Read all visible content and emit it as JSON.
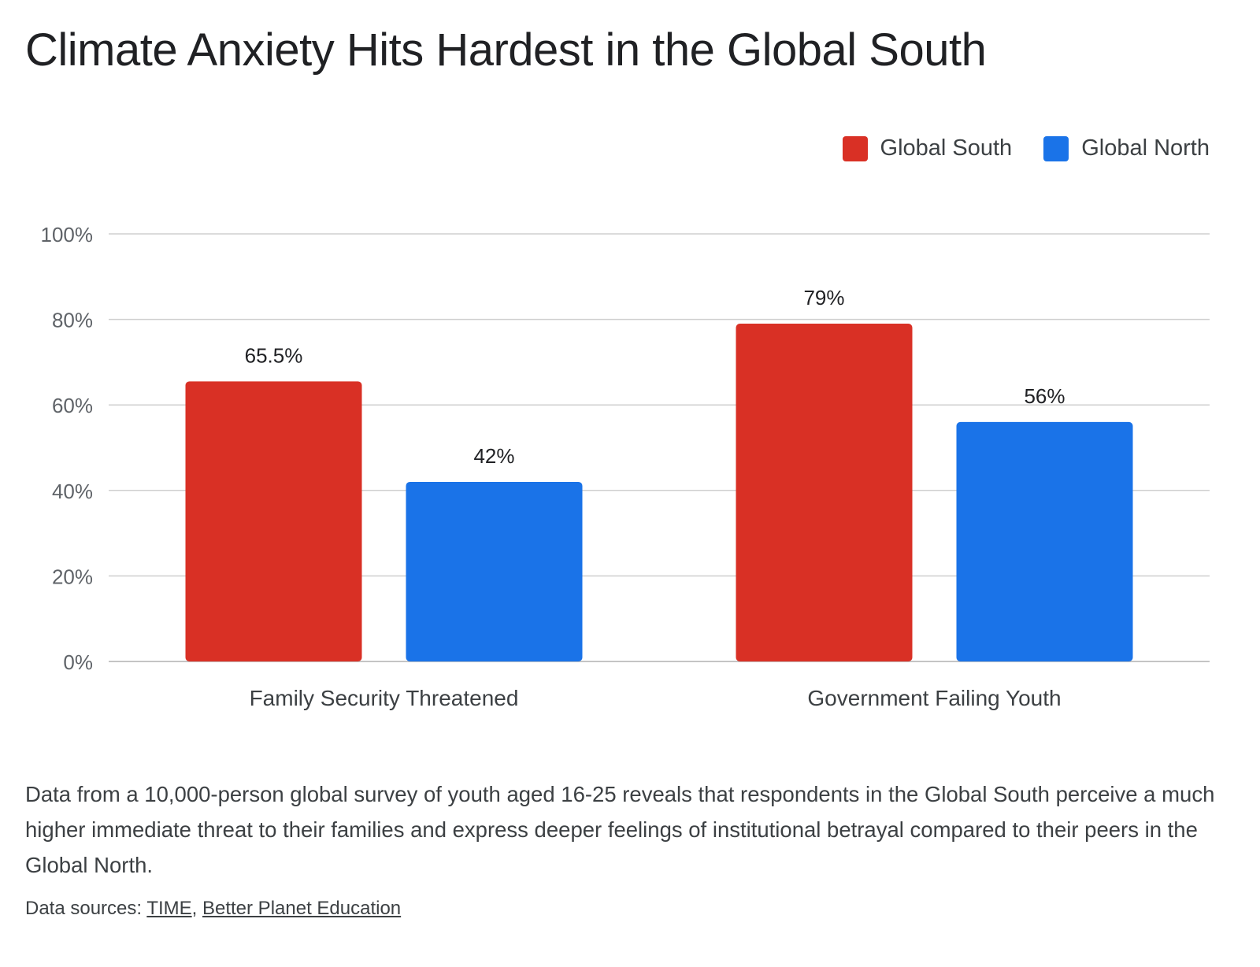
{
  "header": {
    "title": "Climate Anxiety Hits Hardest in the Global South"
  },
  "chart_data": {
    "type": "bar",
    "categories": [
      "Family Security Threatened",
      "Government Failing Youth"
    ],
    "series": [
      {
        "name": "Global South",
        "values": [
          65.5,
          79
        ],
        "labels": [
          "65.5%",
          "79%"
        ],
        "color": "#d93025"
      },
      {
        "name": "Global North",
        "values": [
          42,
          56
        ],
        "labels": [
          "42%",
          "56%"
        ],
        "color": "#1a73e8"
      }
    ],
    "ylim": [
      0,
      100
    ],
    "yticks": [
      0,
      20,
      40,
      60,
      80,
      100
    ],
    "ytick_labels": [
      "0%",
      "20%",
      "40%",
      "60%",
      "80%",
      "100%"
    ],
    "grid": true,
    "legend_position": "top-right",
    "xlabel": "",
    "ylabel": ""
  },
  "footer": {
    "description": "Data from a 10,000-person global survey of youth aged 16-25 reveals that respondents in the Global South perceive a much higher immediate threat to their families and express deeper feelings of institutional betrayal compared to their peers in the Global North.",
    "sources_label": "Data sources: ",
    "sources": [
      {
        "label": "TIME"
      },
      {
        "label": "Better Planet Education"
      }
    ],
    "sources_separator": ", "
  }
}
